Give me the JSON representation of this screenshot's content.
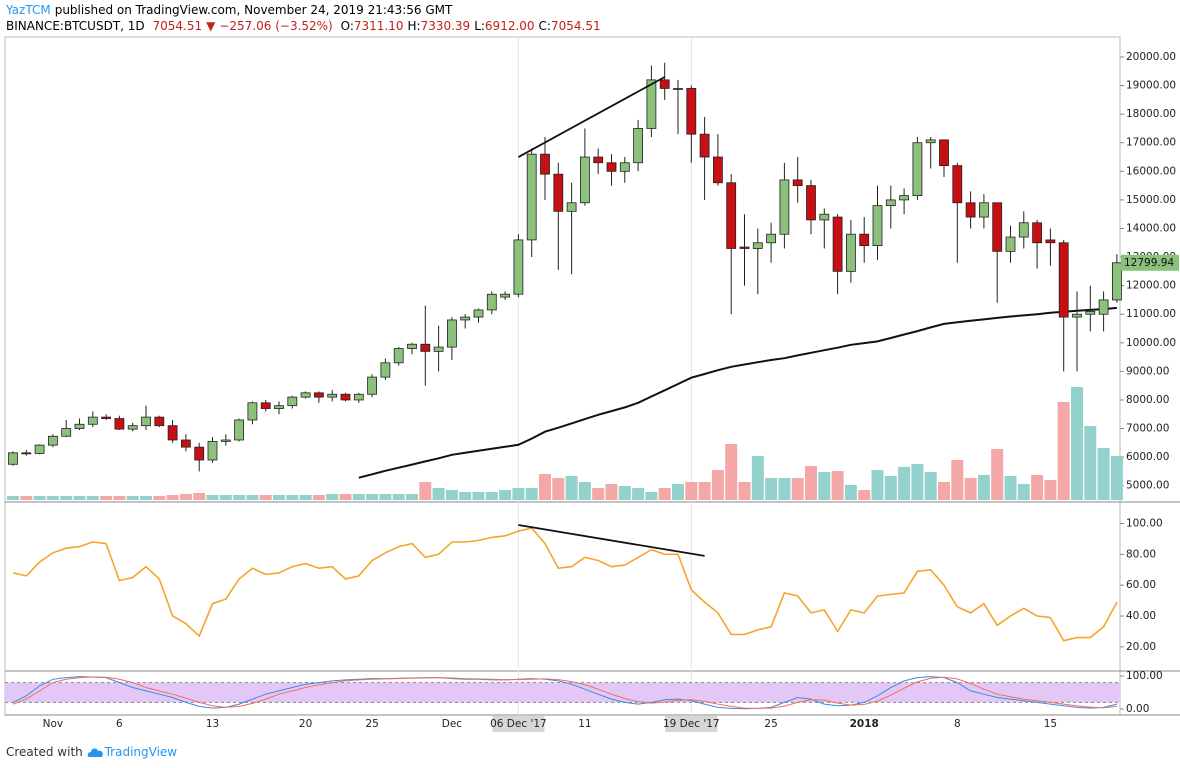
{
  "header": {
    "author": "YazTCM",
    "published": "published on TradingView.com, November 24, 2019 21:43:56 GMT",
    "symbol": "BINANCE:BTCUSDT, 1D",
    "last": "7054.51",
    "arrow": "▼",
    "change": "−257.06 (−3.52%)",
    "ohlc_labels": [
      "O:",
      "H:",
      "L:",
      "C:"
    ],
    "ohlc_values": [
      "7311.10",
      "7330.39",
      "6912.00",
      "7054.51"
    ]
  },
  "footer": {
    "text": "Created with",
    "brand": "TradingView"
  },
  "chart_data": {
    "type": "candlestick",
    "categories": [
      null,
      null,
      null,
      "Nov",
      null,
      null,
      null,
      null,
      "6",
      null,
      null,
      null,
      null,
      null,
      null,
      "13",
      null,
      null,
      null,
      null,
      null,
      null,
      "20",
      null,
      null,
      null,
      null,
      "25",
      null,
      null,
      null,
      null,
      null,
      "Dec",
      null,
      null,
      null,
      null,
      "06 Dec '17",
      null,
      null,
      null,
      null,
      "11",
      null,
      null,
      null,
      null,
      null,
      null,
      null,
      "19 Dec '17",
      null,
      null,
      null,
      null,
      null,
      "25",
      null,
      null,
      null,
      null,
      null,
      null,
      "2018",
      null,
      null,
      null,
      null,
      null,
      null,
      "8",
      null,
      null,
      null,
      null,
      null,
      null,
      "15",
      null,
      null,
      null,
      null,
      null
    ],
    "candles": [
      [
        5750,
        6200,
        5700,
        6150
      ],
      [
        6150,
        6250,
        6050,
        6130
      ],
      [
        6130,
        6450,
        6100,
        6420
      ],
      [
        6420,
        6800,
        6350,
        6730
      ],
      [
        6730,
        7300,
        6700,
        7000
      ],
      [
        7000,
        7350,
        6950,
        7150
      ],
      [
        7150,
        7600,
        7050,
        7400
      ],
      [
        7400,
        7500,
        7300,
        7350
      ],
      [
        7350,
        7450,
        6950,
        6980
      ],
      [
        6980,
        7200,
        6900,
        7100
      ],
      [
        7100,
        7800,
        6950,
        7400
      ],
      [
        7400,
        7450,
        7050,
        7100
      ],
      [
        7100,
        7300,
        6500,
        6600
      ],
      [
        6600,
        6800,
        6200,
        6350
      ],
      [
        6350,
        6500,
        5500,
        5900
      ],
      [
        5900,
        6700,
        5800,
        6550
      ],
      [
        6550,
        6800,
        6400,
        6600
      ],
      [
        6600,
        7350,
        6550,
        7300
      ],
      [
        7300,
        7950,
        7150,
        7900
      ],
      [
        7900,
        8000,
        7600,
        7700
      ],
      [
        7700,
        7950,
        7500,
        7800
      ],
      [
        7800,
        8150,
        7700,
        8100
      ],
      [
        8100,
        8300,
        8050,
        8250
      ],
      [
        8250,
        8300,
        7900,
        8100
      ],
      [
        8100,
        8350,
        7950,
        8200
      ],
      [
        8200,
        8250,
        7950,
        8000
      ],
      [
        8000,
        8250,
        7900,
        8200
      ],
      [
        8200,
        8900,
        8100,
        8800
      ],
      [
        8800,
        9450,
        8700,
        9300
      ],
      [
        9300,
        9850,
        9200,
        9800
      ],
      [
        9800,
        10000,
        9600,
        9950
      ],
      [
        9950,
        11300,
        8500,
        9700
      ],
      [
        9700,
        10600,
        9000,
        9850
      ],
      [
        9850,
        10900,
        9400,
        10800
      ],
      [
        10800,
        11000,
        10500,
        10900
      ],
      [
        10900,
        11200,
        10700,
        11150
      ],
      [
        11150,
        11800,
        11000,
        11700
      ],
      [
        11600,
        11800,
        11500,
        11700
      ],
      [
        11700,
        13800,
        11600,
        13600
      ],
      [
        13600,
        16800,
        13000,
        16600
      ],
      [
        16600,
        17200,
        15000,
        15900
      ],
      [
        15900,
        16300,
        12550,
        14600
      ],
      [
        14600,
        15600,
        12400,
        14900
      ],
      [
        14900,
        17500,
        14800,
        16500
      ],
      [
        16500,
        16800,
        15900,
        16300
      ],
      [
        16300,
        16600,
        15500,
        16000
      ],
      [
        16000,
        16500,
        15600,
        16300
      ],
      [
        16300,
        17800,
        16000,
        17500
      ],
      [
        17500,
        19700,
        17200,
        19200
      ],
      [
        19200,
        19800,
        18500,
        18900
      ],
      [
        18880,
        19200,
        17300,
        18900
      ],
      [
        18900,
        19000,
        16300,
        17300
      ],
      [
        17300,
        17900,
        15000,
        16500
      ],
      [
        16500,
        17300,
        15500,
        15600
      ],
      [
        15600,
        15900,
        11000,
        13300
      ],
      [
        13350,
        14500,
        12000,
        13300
      ],
      [
        13300,
        14000,
        11700,
        13500
      ],
      [
        13500,
        14200,
        12800,
        13800
      ],
      [
        13800,
        16300,
        13300,
        15700
      ],
      [
        15700,
        16500,
        14900,
        15500
      ],
      [
        15500,
        15700,
        13800,
        14300
      ],
      [
        14300,
        14700,
        13300,
        14500
      ],
      [
        14400,
        14500,
        11700,
        12500
      ],
      [
        12500,
        14300,
        12100,
        13800
      ],
      [
        13800,
        14400,
        12800,
        13400
      ],
      [
        13400,
        15500,
        12900,
        14800
      ],
      [
        14800,
        15500,
        14000,
        15000
      ],
      [
        15000,
        15400,
        14500,
        15150
      ],
      [
        15150,
        17200,
        15000,
        17000
      ],
      [
        17000,
        17200,
        16100,
        17100
      ],
      [
        17100,
        17100,
        15800,
        16200
      ],
      [
        16200,
        16300,
        12800,
        14900
      ],
      [
        14900,
        15300,
        14000,
        14400
      ],
      [
        14400,
        15200,
        14000,
        14900
      ],
      [
        14900,
        14900,
        11400,
        13200
      ],
      [
        13200,
        14100,
        12800,
        13700
      ],
      [
        13700,
        14600,
        13300,
        14200
      ],
      [
        14200,
        14300,
        12600,
        13500
      ],
      [
        13600,
        14000,
        12700,
        13500
      ],
      [
        13500,
        13600,
        9000,
        10900
      ],
      [
        10900,
        11800,
        9000,
        11000
      ],
      [
        11000,
        12000,
        10400,
        11100
      ],
      [
        11000,
        11800,
        10400,
        11500
      ],
      [
        11500,
        13100,
        11400,
        12800
      ]
    ],
    "up_color": "#8cc17c",
    "down_color": "#c80f13",
    "ylim": [
      4500,
      20700
    ],
    "yticks": [
      {
        "value": 5000,
        "label": "5000.00"
      },
      {
        "value": 6000,
        "label": "6000.00"
      },
      {
        "value": 7000,
        "label": "7000.00"
      },
      {
        "value": 8000,
        "label": "8000.00"
      },
      {
        "value": 9000,
        "label": "9000.00"
      },
      {
        "value": 10000,
        "label": "10000.00"
      },
      {
        "value": 11000,
        "label": "11000.00"
      },
      {
        "value": 12000,
        "label": "12000.00"
      },
      {
        "value": 13000,
        "label": "13000.00"
      },
      {
        "value": 14000,
        "label": "14000.00"
      },
      {
        "value": 15000,
        "label": "15000.00"
      },
      {
        "value": 16000,
        "label": "16000.00"
      },
      {
        "value": 17000,
        "label": "17000.00"
      },
      {
        "value": 18000,
        "label": "18000.00"
      },
      {
        "value": 19000,
        "label": "19000.00"
      },
      {
        "value": 20000,
        "label": "20000.00"
      }
    ],
    "last_price": {
      "value": 12799.94,
      "label": "12799.94"
    },
    "ma": {
      "color": "#111111",
      "values": [
        null,
        null,
        null,
        null,
        null,
        null,
        null,
        null,
        null,
        null,
        null,
        null,
        null,
        null,
        null,
        null,
        null,
        null,
        null,
        null,
        null,
        null,
        null,
        null,
        null,
        null,
        5280,
        5400,
        5520,
        5630,
        5740,
        5850,
        5960,
        6080,
        6150,
        6220,
        6290,
        6360,
        6430,
        6650,
        6890,
        7030,
        7180,
        7330,
        7480,
        7610,
        7740,
        7900,
        8120,
        8340,
        8560,
        8780,
        8910,
        9040,
        9160,
        9240,
        9320,
        9400,
        9460,
        9560,
        9650,
        9740,
        9830,
        9930,
        9990,
        10050,
        10170,
        10290,
        10410,
        10540,
        10660,
        10720,
        10770,
        10820,
        10870,
        10920,
        10960,
        11000,
        11050,
        11090,
        11120,
        11150,
        11180,
        11220
      ]
    },
    "volume": {
      "up_color": "#93d2cc",
      "down_color": "#f3a7a7",
      "values": [
        4,
        4,
        4,
        4,
        4,
        4,
        4,
        4,
        4,
        4,
        4,
        4,
        5,
        6,
        7,
        5,
        5,
        5,
        5,
        5,
        5,
        5,
        5,
        5,
        6,
        6,
        6,
        6,
        6,
        6,
        6,
        18,
        12,
        10,
        8,
        8,
        8,
        10,
        12,
        12,
        26,
        22,
        24,
        18,
        12,
        16,
        14,
        12,
        8,
        12,
        16,
        18,
        18,
        30,
        56,
        18,
        44,
        22,
        22,
        22,
        34,
        28,
        29,
        15,
        10,
        30,
        24,
        33,
        36,
        28,
        18,
        40,
        22,
        25,
        51,
        24,
        16,
        25,
        20,
        98,
        113,
        74,
        52,
        44
      ]
    },
    "trendlines": [
      {
        "pane": "price",
        "x": [
          38,
          49
        ],
        "values": [
          16500,
          19300
        ]
      },
      {
        "pane": "rsi",
        "x": [
          38,
          52
        ],
        "values": [
          99,
          79
        ]
      }
    ],
    "rsi": {
      "color": "#f7a428",
      "ylim": [
        5,
        112
      ],
      "yticks": [
        {
          "value": 20,
          "label": "20.00"
        },
        {
          "value": 40,
          "label": "40.00"
        },
        {
          "value": 60,
          "label": "60.00"
        },
        {
          "value": 80,
          "label": "80.00"
        },
        {
          "value": 100,
          "label": "100.00"
        }
      ],
      "values": [
        68,
        66,
        75,
        81,
        84,
        85,
        88,
        87,
        63,
        65,
        72,
        64,
        40,
        35,
        27,
        48,
        51,
        64,
        71,
        67,
        68,
        72,
        74,
        71,
        72,
        64,
        66,
        76,
        81,
        85,
        87,
        78,
        80,
        88,
        88,
        89,
        91,
        92,
        95,
        97,
        87,
        71,
        72,
        78,
        76,
        72,
        73,
        78,
        83,
        80,
        80,
        57,
        49,
        42,
        28,
        28,
        31,
        33,
        55,
        53,
        42,
        44,
        30,
        44,
        42,
        53,
        54,
        55,
        69,
        70,
        60,
        46,
        42,
        48,
        34,
        40,
        45,
        40,
        39,
        24,
        26,
        26,
        33,
        49
      ]
    },
    "stoch": {
      "ylim": [
        -18,
        112
      ],
      "band": [
        20,
        80
      ],
      "band_color": "#e3c8f7",
      "yticks": [
        {
          "value": 0,
          "label": "0.00"
        },
        {
          "value": 100,
          "label": "100.00"
        }
      ],
      "series": [
        {
          "color": "#3d8be0",
          "values": [
            20,
            40,
            70,
            90,
            95,
            98,
            97,
            95,
            80,
            65,
            55,
            45,
            35,
            20,
            8,
            3,
            5,
            15,
            30,
            45,
            55,
            65,
            75,
            80,
            85,
            88,
            90,
            92,
            92,
            93,
            94,
            95,
            95,
            92,
            90,
            90,
            88,
            88,
            90,
            92,
            90,
            85,
            75,
            60,
            45,
            30,
            20,
            15,
            20,
            28,
            30,
            25,
            15,
            5,
            2,
            1,
            2,
            5,
            20,
            35,
            30,
            15,
            10,
            12,
            20,
            40,
            65,
            85,
            95,
            98,
            95,
            80,
            55,
            45,
            35,
            30,
            25,
            20,
            15,
            10,
            5,
            3,
            5,
            15
          ]
        },
        {
          "color": "#f0715a",
          "values": [
            15,
            30,
            55,
            80,
            90,
            95,
            97,
            96,
            90,
            80,
            65,
            55,
            45,
            33,
            20,
            10,
            5,
            8,
            17,
            30,
            45,
            55,
            65,
            73,
            80,
            85,
            88,
            90,
            91,
            92,
            93,
            94,
            95,
            94,
            92,
            91,
            90,
            89,
            89,
            90,
            91,
            89,
            83,
            73,
            60,
            45,
            32,
            22,
            18,
            21,
            26,
            28,
            23,
            15,
            8,
            3,
            2,
            3,
            9,
            20,
            28,
            27,
            18,
            12,
            14,
            24,
            42,
            63,
            82,
            93,
            96,
            91,
            77,
            60,
            45,
            37,
            30,
            25,
            20,
            15,
            10,
            6,
            4,
            8
          ]
        }
      ]
    }
  }
}
